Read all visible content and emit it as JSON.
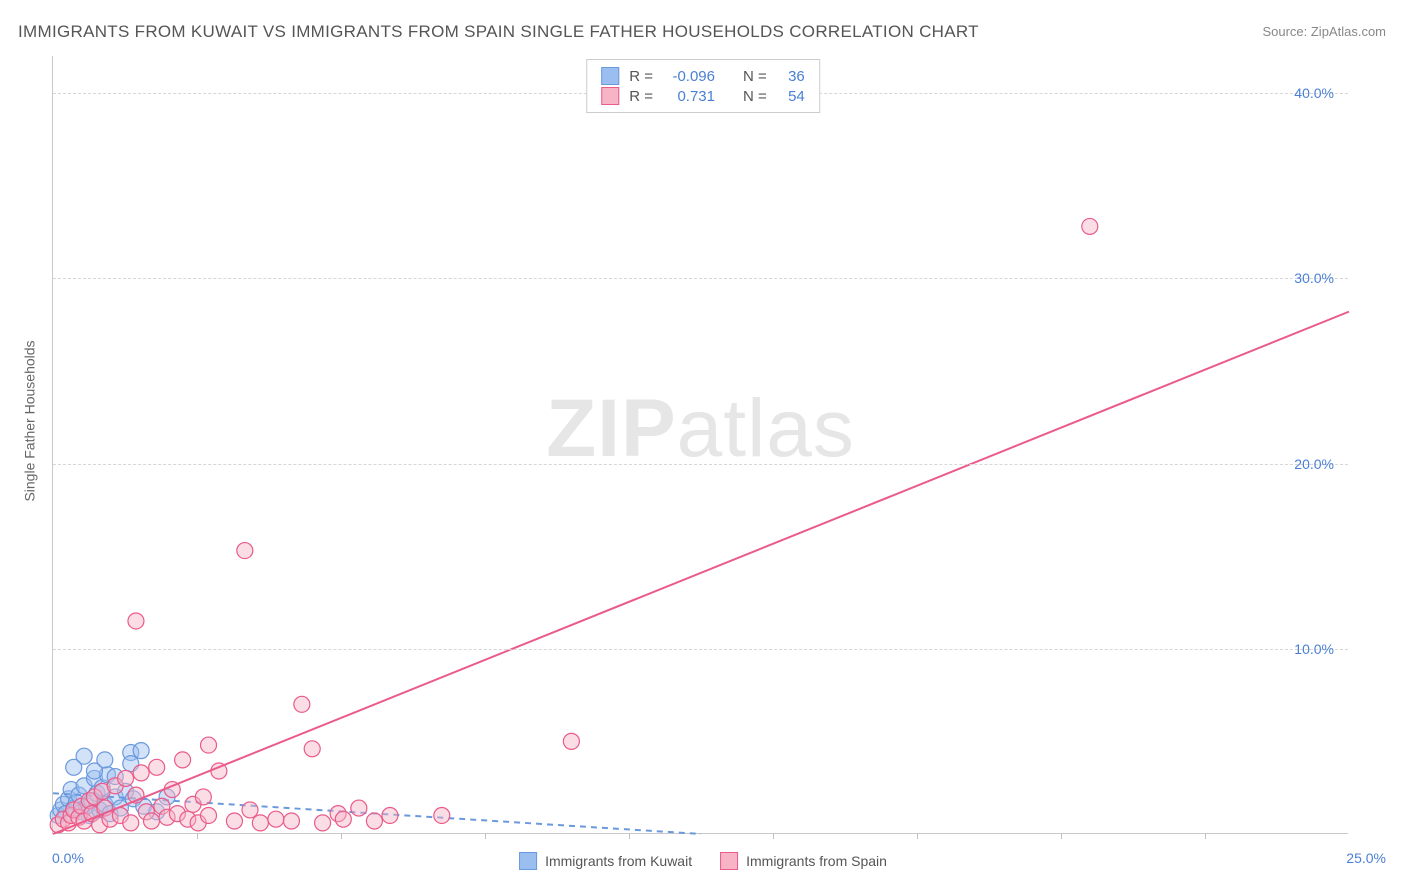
{
  "title": "IMMIGRANTS FROM KUWAIT VS IMMIGRANTS FROM SPAIN SINGLE FATHER HOUSEHOLDS CORRELATION CHART",
  "source": "Source: ZipAtlas.com",
  "watermark_a": "ZIP",
  "watermark_b": "atlas",
  "chart": {
    "type": "scatter",
    "xlabel": "",
    "ylabel": "Single Father Households",
    "xlim": [
      0,
      25
    ],
    "ylim": [
      0,
      42
    ],
    "xtick_labels": [
      "0.0%",
      "25.0%"
    ],
    "ytick_positions": [
      10,
      20,
      30,
      40
    ],
    "ytick_labels": [
      "10.0%",
      "20.0%",
      "30.0%",
      "40.0%"
    ],
    "xtick_minor_positions": [
      2.78,
      5.56,
      8.33,
      11.11,
      13.89,
      16.67,
      19.44,
      22.22
    ],
    "background_color": "#ffffff",
    "grid_color": "#d6d6d6",
    "axis_color": "#c9c9c9",
    "tick_label_color": "#4a7fd6",
    "label_fontsize": 14,
    "marker_radius": 8,
    "marker_stroke_width": 1.2,
    "trend_line_width": 2,
    "series": [
      {
        "name": "Immigrants from Kuwait",
        "fill_color": "#9bbef0",
        "fill_opacity": 0.45,
        "stroke_color": "#6a99dd",
        "trend_color": "#6a99dd",
        "trend_dash": "6,5",
        "r_value": "-0.096",
        "n_value": "36",
        "trend": {
          "x1": 0,
          "y1": 2.2,
          "x2": 12.5,
          "y2": 0.0
        },
        "points": [
          [
            0.1,
            1.0
          ],
          [
            0.15,
            1.3
          ],
          [
            0.2,
            1.6
          ],
          [
            0.25,
            1.1
          ],
          [
            0.3,
            1.9
          ],
          [
            0.35,
            2.4
          ],
          [
            0.4,
            1.4
          ],
          [
            0.45,
            1.7
          ],
          [
            0.5,
            2.1
          ],
          [
            0.55,
            1.2
          ],
          [
            0.6,
            2.6
          ],
          [
            0.65,
            1.5
          ],
          [
            0.7,
            1.0
          ],
          [
            0.75,
            1.8
          ],
          [
            0.8,
            3.0
          ],
          [
            0.85,
            2.2
          ],
          [
            0.9,
            1.3
          ],
          [
            0.95,
            2.5
          ],
          [
            1.0,
            1.6
          ],
          [
            1.05,
            3.2
          ],
          [
            1.1,
            1.1
          ],
          [
            1.2,
            2.0
          ],
          [
            1.3,
            1.4
          ],
          [
            1.4,
            2.3
          ],
          [
            1.5,
            4.4
          ],
          [
            1.5,
            3.8
          ],
          [
            1.7,
            4.5
          ],
          [
            0.4,
            3.6
          ],
          [
            0.6,
            4.2
          ],
          [
            0.8,
            3.4
          ],
          [
            1.0,
            4.0
          ],
          [
            1.2,
            3.1
          ],
          [
            1.55,
            1.9
          ],
          [
            1.75,
            1.5
          ],
          [
            2.0,
            1.2
          ],
          [
            2.2,
            2.0
          ]
        ]
      },
      {
        "name": "Immigrants from Spain",
        "fill_color": "#f6b4c6",
        "fill_opacity": 0.45,
        "stroke_color": "#ea5a8a",
        "trend_color": "#ea5a8a",
        "trend_dash": "",
        "r_value": "0.731",
        "n_value": "54",
        "trend": {
          "x1": 0,
          "y1": 0.0,
          "x2": 25,
          "y2": 28.2
        },
        "points": [
          [
            0.1,
            0.5
          ],
          [
            0.2,
            0.8
          ],
          [
            0.3,
            0.6
          ],
          [
            0.35,
            1.0
          ],
          [
            0.4,
            1.3
          ],
          [
            0.5,
            0.9
          ],
          [
            0.55,
            1.5
          ],
          [
            0.6,
            0.7
          ],
          [
            0.7,
            1.8
          ],
          [
            0.75,
            1.1
          ],
          [
            0.8,
            2.0
          ],
          [
            0.9,
            0.5
          ],
          [
            0.95,
            2.3
          ],
          [
            1.0,
            1.4
          ],
          [
            1.1,
            0.8
          ],
          [
            1.2,
            2.6
          ],
          [
            1.3,
            1.0
          ],
          [
            1.4,
            3.0
          ],
          [
            1.5,
            0.6
          ],
          [
            1.6,
            2.1
          ],
          [
            1.7,
            3.3
          ],
          [
            1.8,
            1.2
          ],
          [
            1.9,
            0.7
          ],
          [
            2.0,
            3.6
          ],
          [
            2.1,
            1.5
          ],
          [
            2.2,
            0.9
          ],
          [
            2.3,
            2.4
          ],
          [
            2.4,
            1.1
          ],
          [
            2.5,
            4.0
          ],
          [
            2.6,
            0.8
          ],
          [
            2.7,
            1.6
          ],
          [
            2.8,
            0.6
          ],
          [
            2.9,
            2.0
          ],
          [
            3.0,
            1.0
          ],
          [
            3.2,
            3.4
          ],
          [
            3.5,
            0.7
          ],
          [
            3.8,
            1.3
          ],
          [
            4.0,
            0.6
          ],
          [
            4.3,
            0.8
          ],
          [
            4.6,
            0.7
          ],
          [
            4.8,
            7.0
          ],
          [
            5.2,
            0.6
          ],
          [
            5.5,
            1.1
          ],
          [
            5.0,
            4.6
          ],
          [
            5.6,
            0.8
          ],
          [
            5.9,
            1.4
          ],
          [
            6.2,
            0.7
          ],
          [
            6.5,
            1.0
          ],
          [
            7.5,
            1.0
          ],
          [
            3.7,
            15.3
          ],
          [
            10.0,
            5.0
          ],
          [
            1.6,
            11.5
          ],
          [
            20.0,
            32.8
          ],
          [
            3.0,
            4.8
          ]
        ]
      }
    ]
  },
  "legend": {
    "items": [
      {
        "label": "Immigrants from Kuwait",
        "fill": "#9bbef0",
        "stroke": "#6a99dd"
      },
      {
        "label": "Immigrants from Spain",
        "fill": "#f6b4c6",
        "stroke": "#ea5a8a"
      }
    ]
  },
  "stats_box": {
    "rows": [
      {
        "fill": "#9bbef0",
        "stroke": "#6a99dd",
        "r": "-0.096",
        "n": "36"
      },
      {
        "fill": "#f6b4c6",
        "stroke": "#ea5a8a",
        "r": "0.731",
        "n": "54"
      }
    ],
    "r_label": "R =",
    "n_label": "N ="
  }
}
